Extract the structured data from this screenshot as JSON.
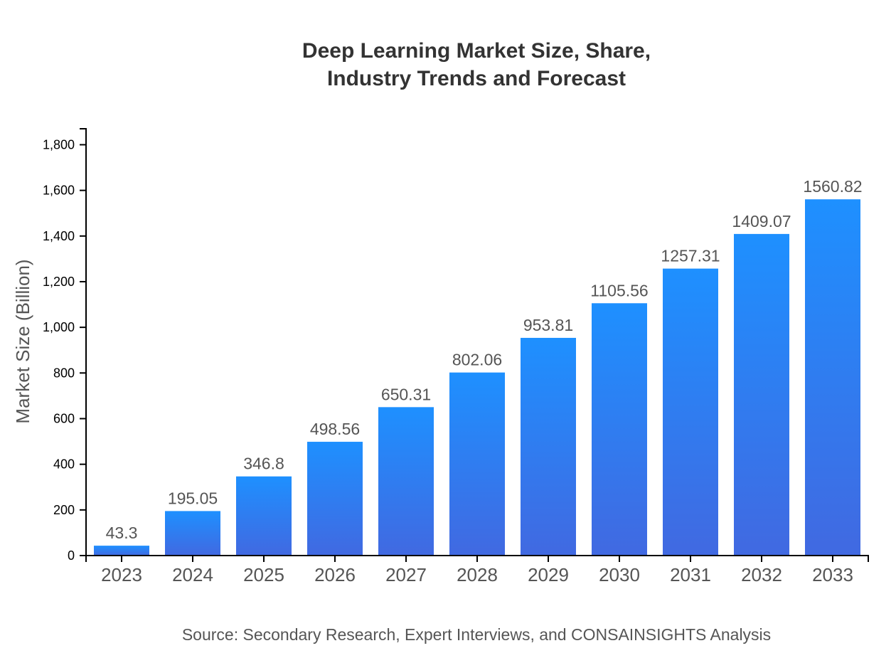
{
  "chart_data": {
    "type": "bar",
    "title_lines": [
      "Deep Learning Market Size, Share,",
      "Industry Trends and Forecast"
    ],
    "xlabel": "",
    "ylabel": "Market Size (Billion)",
    "categories": [
      "2023",
      "2024",
      "2025",
      "2026",
      "2027",
      "2028",
      "2029",
      "2030",
      "2031",
      "2032",
      "2033"
    ],
    "values": [
      43.3,
      195.05,
      346.8,
      498.56,
      650.31,
      802.06,
      953.81,
      1105.56,
      1257.31,
      1409.07,
      1560.82
    ],
    "value_labels": [
      "43.3",
      "195.05",
      "346.8",
      "498.56",
      "650.31",
      "802.06",
      "953.81",
      "1105.56",
      "1257.31",
      "1409.07",
      "1560.82"
    ],
    "yticks": [
      0,
      200,
      400,
      600,
      800,
      1000,
      1200,
      1400,
      1600,
      1800
    ],
    "ytick_labels": [
      "0",
      "200",
      "400",
      "600",
      "800",
      "1,000",
      "1,200",
      "1,400",
      "1,600",
      "1,800"
    ],
    "ylim": [
      0,
      1870
    ],
    "grid": false,
    "legend": "none",
    "colors": {
      "bar_top": "#1E90FF",
      "bar_bottom": "#4169E1",
      "text": "#555555",
      "title": "#333333"
    },
    "source": "Source: Secondary Research, Expert Interviews, and CONSAINSIGHTS Analysis"
  }
}
